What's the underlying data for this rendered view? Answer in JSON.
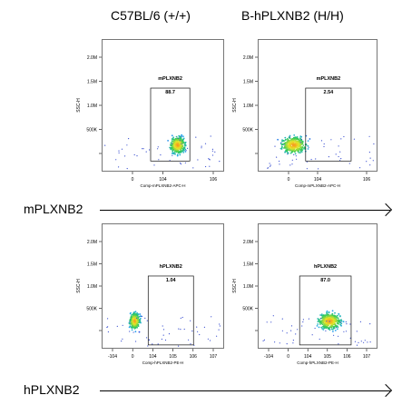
{
  "column_titles": [
    "C57BL/6 (+/+)",
    "B-hPLXNB2 (H/H)"
  ],
  "row_labels": [
    "mPLXNB2",
    "hPLXNB2"
  ],
  "chart_data": [
    {
      "type": "scatter",
      "row": 0,
      "col": 0,
      "title": "",
      "xlabel": "Comp-mPLXNB2-APC-H",
      "ylabel": "SSC-H",
      "yticks": [
        "2.0M",
        "1.5M",
        "1.0M",
        "500K",
        "0"
      ],
      "xticks": [
        "0",
        "10^4",
        "10^6"
      ],
      "gate": {
        "name": "mPLXNB2",
        "value": "88.7"
      },
      "population": {
        "x_frac": 0.62,
        "y_frac": 0.2,
        "spread": 0.06,
        "density": "high"
      }
    },
    {
      "type": "scatter",
      "row": 0,
      "col": 1,
      "title": "",
      "xlabel": "Comp-mPLXNB2-APC-H",
      "ylabel": "SSC-H",
      "yticks": [
        "2.0M",
        "1.5M",
        "1.0M",
        "500K",
        "0"
      ],
      "xticks": [
        "0",
        "10^4",
        "10^6"
      ],
      "gate": {
        "name": "mPLXNB2",
        "value": "2.54"
      },
      "population": {
        "x_frac": 0.3,
        "y_frac": 0.2,
        "spread": 0.1,
        "density": "high"
      }
    },
    {
      "type": "scatter",
      "row": 1,
      "col": 0,
      "title": "",
      "xlabel": "Comp-hPLXNB2-PE-H",
      "ylabel": "SSC-H",
      "yticks": [
        "2.0M",
        "1.5M",
        "1.0M",
        "500K",
        "0"
      ],
      "xticks": [
        "-10^4",
        "0",
        "10^4",
        "10^5",
        "10^6",
        "10^7"
      ],
      "gate": {
        "name": "hPLXNB2",
        "value": "1.04"
      },
      "population": {
        "x_frac": 0.27,
        "y_frac": 0.22,
        "spread": 0.04,
        "density": "high"
      }
    },
    {
      "type": "scatter",
      "row": 1,
      "col": 1,
      "title": "",
      "xlabel": "Comp-hPLXNB2-PE-H",
      "ylabel": "SSC-H",
      "yticks": [
        "2.0M",
        "1.5M",
        "1.0M",
        "500K",
        "0"
      ],
      "xticks": [
        "-10^4",
        "0",
        "10^4",
        "10^5",
        "10^6",
        "10^7"
      ],
      "gate": {
        "name": "hPLXNB2",
        "value": "87.0"
      },
      "population": {
        "x_frac": 0.6,
        "y_frac": 0.22,
        "spread": 0.09,
        "density": "high"
      }
    }
  ]
}
